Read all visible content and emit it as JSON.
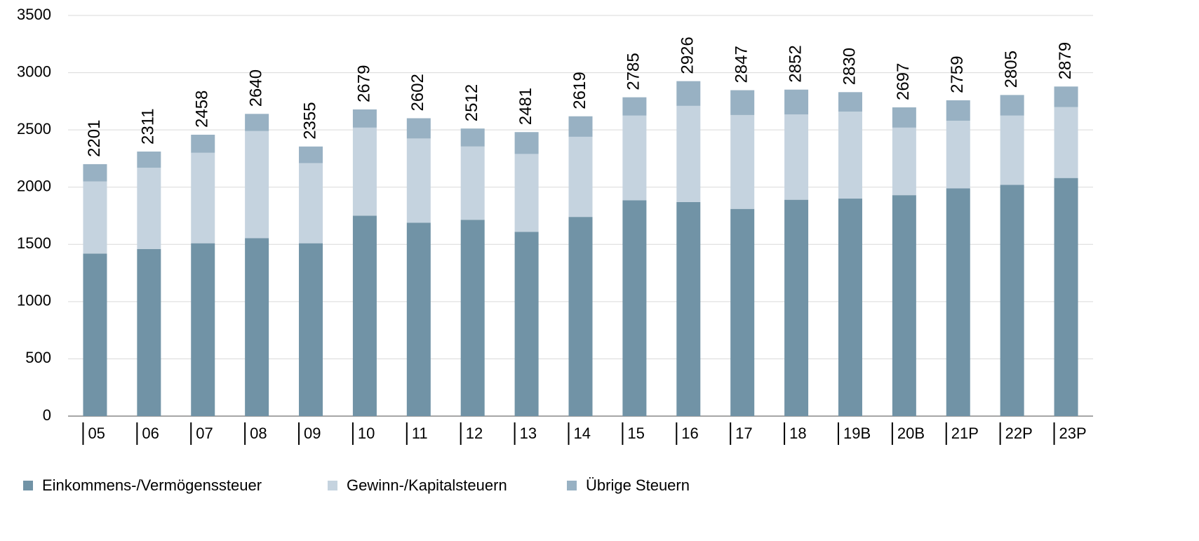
{
  "chart_data": {
    "type": "stacked_bar",
    "categories": [
      "05",
      "06",
      "07",
      "08",
      "09",
      "10",
      "11",
      "12",
      "13",
      "14",
      "15",
      "16",
      "17",
      "18",
      "19B",
      "20B",
      "21P",
      "22P",
      "23P"
    ],
    "series": [
      {
        "name": "Einkommens-/Vermögenssteuer",
        "color": "#7193a6",
        "values": [
          1420,
          1460,
          1510,
          1555,
          1510,
          1750,
          1690,
          1715,
          1610,
          1740,
          1885,
          1870,
          1810,
          1890,
          1900,
          1930,
          1990,
          2020,
          2080
        ]
      },
      {
        "name": "Gewinn-/Kapitalsteuern",
        "color": "#c5d3df",
        "values": [
          630,
          710,
          790,
          935,
          700,
          770,
          735,
          640,
          680,
          700,
          740,
          840,
          820,
          745,
          760,
          590,
          590,
          605,
          620
        ]
      },
      {
        "name": "Übrige Steuern",
        "color": "#98b1c3",
        "values": [
          151,
          141,
          158,
          150,
          145,
          159,
          177,
          157,
          191,
          179,
          160,
          216,
          217,
          217,
          170,
          177,
          179,
          180,
          179
        ]
      }
    ],
    "totals": [
      2201,
      2311,
      2458,
      2640,
      2355,
      2679,
      2602,
      2512,
      2481,
      2619,
      2785,
      2926,
      2847,
      2852,
      2830,
      2697,
      2759,
      2805,
      2879
    ],
    "ylim": [
      0,
      3500
    ],
    "yticks": [
      0,
      500,
      1000,
      1500,
      2000,
      2500,
      3000,
      3500
    ],
    "grid": true,
    "legend": "bottom-left"
  }
}
